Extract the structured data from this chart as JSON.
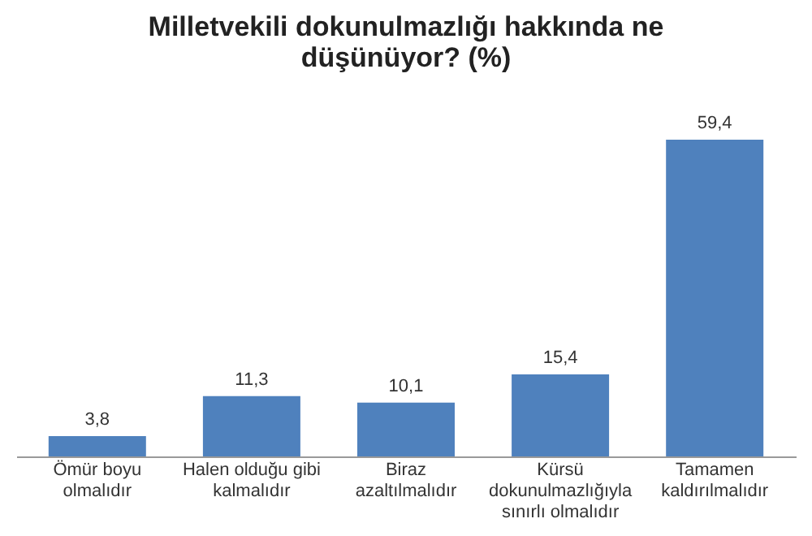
{
  "chart_data": {
    "type": "bar",
    "title": "Milletvekili dokunulmazlığı hakkında ne düşünüyor? (%)",
    "categories": [
      "Ömür boyu olmalıdır",
      "Halen olduğu gibi kalmalıdır",
      "Biraz azaltılmalıdır",
      "Kürsü dokunulmazlığıyla sınırlı olmalıdır",
      "Tamamen kaldırılmalıdır"
    ],
    "values": [
      3.8,
      11.3,
      10.1,
      15.4,
      59.4
    ],
    "value_labels": [
      "3,8",
      "11,3",
      "10,1",
      "15,4",
      "59,4"
    ],
    "color": "#4f81bd",
    "tick_labels": "x"
  }
}
